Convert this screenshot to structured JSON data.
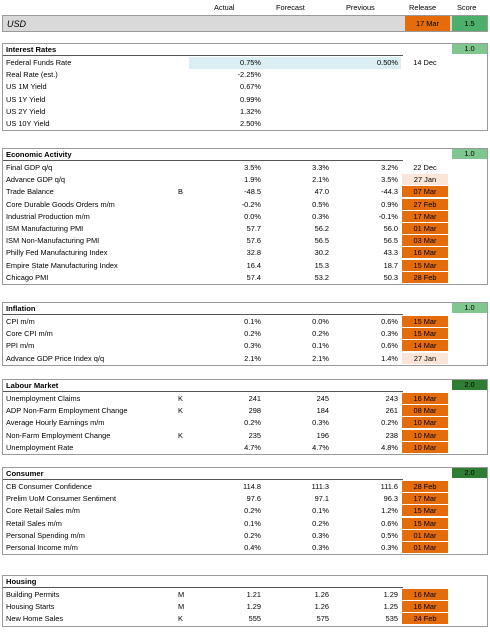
{
  "header": {
    "actual": "Actual",
    "forecast": "Forecast",
    "previous": "Previous",
    "release": "Release",
    "score": "Score"
  },
  "currency": {
    "name": "USD",
    "release": "17 Mar",
    "score": "1.5"
  },
  "colors": {
    "orange": "#e46c0a",
    "light_orange": "#fbe5d6",
    "green_light": "#7fc68f",
    "green_dark": "#2e7d32",
    "blue_light": "#dbeef4"
  },
  "sections": [
    {
      "title": "Interest Rates",
      "score": "1.0",
      "score_color": "#7fc68f",
      "rows": [
        {
          "label": "Federal Funds Rate",
          "unit": "",
          "actual": "0.75%",
          "forecast": "",
          "previous": "0.50%",
          "release": "14 Dec",
          "rel_style": "none"
        },
        {
          "label": "Real Rate (est.)",
          "unit": "",
          "actual": "-2.25%",
          "forecast": "",
          "previous": "",
          "release": "",
          "rel_style": "none"
        },
        {
          "label": "US 1M Yield",
          "unit": "",
          "actual": "0.67%",
          "forecast": "",
          "previous": "",
          "release": "",
          "rel_style": "none"
        },
        {
          "label": "US 1Y Yield",
          "unit": "",
          "actual": "0.99%",
          "forecast": "",
          "previous": "",
          "release": "",
          "rel_style": "none"
        },
        {
          "label": "US 2Y Yield",
          "unit": "",
          "actual": "1.32%",
          "forecast": "",
          "previous": "",
          "release": "",
          "rel_style": "none"
        },
        {
          "label": "US 10Y Yield",
          "unit": "",
          "actual": "2.50%",
          "forecast": "",
          "previous": "",
          "release": "",
          "rel_style": "none"
        }
      ]
    },
    {
      "title": "Economic Activity",
      "score": "1.0",
      "score_color": "#7fc68f",
      "rows": [
        {
          "label": "Final GDP q/q",
          "unit": "",
          "actual": "3.5%",
          "forecast": "3.3%",
          "previous": "3.2%",
          "release": "22 Dec",
          "rel_style": "none"
        },
        {
          "label": "Advance GDP q/q",
          "unit": "",
          "actual": "1.9%",
          "forecast": "2.1%",
          "previous": "3.5%",
          "release": "27 Jan",
          "rel_style": "light"
        },
        {
          "label": "Trade Balance",
          "unit": "B",
          "actual": "-48.5",
          "forecast": "47.0",
          "previous": "-44.3",
          "release": "07 Mar",
          "rel_style": "orange"
        },
        {
          "label": "Core Durable Goods Orders m/m",
          "unit": "",
          "actual": "-0.2%",
          "forecast": "0.5%",
          "previous": "0.9%",
          "release": "27 Feb",
          "rel_style": "orange"
        },
        {
          "label": "Industrial Production m/m",
          "unit": "",
          "actual": "0.0%",
          "forecast": "0.3%",
          "previous": "-0.1%",
          "release": "17 Mar",
          "rel_style": "orange"
        },
        {
          "label": "ISM Manufacturing PMI",
          "unit": "",
          "actual": "57.7",
          "forecast": "56.2",
          "previous": "56.0",
          "release": "01 Mar",
          "rel_style": "orange"
        },
        {
          "label": "ISM Non-Manufacturing PMI",
          "unit": "",
          "actual": "57.6",
          "forecast": "56.5",
          "previous": "56.5",
          "release": "03 Mar",
          "rel_style": "orange"
        },
        {
          "label": "Philly Fed Manufacturing Index",
          "unit": "",
          "actual": "32.8",
          "forecast": "30.2",
          "previous": "43.3",
          "release": "16 Mar",
          "rel_style": "orange"
        },
        {
          "label": "Empire State Manufacturing Index",
          "unit": "",
          "actual": "16.4",
          "forecast": "15.3",
          "previous": "18.7",
          "release": "15 Mar",
          "rel_style": "orange"
        },
        {
          "label": "Chicago PMI",
          "unit": "",
          "actual": "57.4",
          "forecast": "53.2",
          "previous": "50.3",
          "release": "28 Feb",
          "rel_style": "orange"
        }
      ]
    },
    {
      "title": "Inflation",
      "score": "1.0",
      "score_color": "#7fc68f",
      "rows": [
        {
          "label": "CPI m/m",
          "unit": "",
          "actual": "0.1%",
          "forecast": "0.0%",
          "previous": "0.6%",
          "release": "15 Mar",
          "rel_style": "orange"
        },
        {
          "label": "Core CPI m/m",
          "unit": "",
          "actual": "0.2%",
          "forecast": "0.2%",
          "previous": "0.3%",
          "release": "15 Mar",
          "rel_style": "orange"
        },
        {
          "label": "PPI m/m",
          "unit": "",
          "actual": "0.3%",
          "forecast": "0.1%",
          "previous": "0.6%",
          "release": "14 Mar",
          "rel_style": "orange"
        },
        {
          "label": "Advance GDP Price Index q/q",
          "unit": "",
          "actual": "2.1%",
          "forecast": "2.1%",
          "previous": "1.4%",
          "release": "27 Jan",
          "rel_style": "light"
        }
      ]
    },
    {
      "title": "Labour Market",
      "score": "2.0",
      "score_color": "#2e7d32",
      "rows": [
        {
          "label": "Unemployment Claims",
          "unit": "K",
          "actual": "241",
          "forecast": "245",
          "previous": "243",
          "release": "16 Mar",
          "rel_style": "orange"
        },
        {
          "label": "ADP Non-Farm Employment Change",
          "unit": "K",
          "actual": "298",
          "forecast": "184",
          "previous": "261",
          "release": "08 Mar",
          "rel_style": "orange"
        },
        {
          "label": "Average Hourly Earnings m/m",
          "unit": "",
          "actual": "0.2%",
          "forecast": "0.3%",
          "previous": "0.2%",
          "release": "10 Mar",
          "rel_style": "orange"
        },
        {
          "label": "Non-Farm Employment Change",
          "unit": "K",
          "actual": "235",
          "forecast": "196",
          "previous": "238",
          "release": "10 Mar",
          "rel_style": "orange"
        },
        {
          "label": "Unemployment Rate",
          "unit": "",
          "actual": "4.7%",
          "forecast": "4.7%",
          "previous": "4.8%",
          "release": "10 Mar",
          "rel_style": "orange"
        }
      ]
    },
    {
      "title": "Consumer",
      "score": "2.0",
      "score_color": "#2e7d32",
      "rows": [
        {
          "label": "CB Consumer Confidence",
          "unit": "",
          "actual": "114.8",
          "forecast": "111.3",
          "previous": "111.6",
          "release": "28 Feb",
          "rel_style": "orange"
        },
        {
          "label": "Prelim UoM Consumer Sentiment",
          "unit": "",
          "actual": "97.6",
          "forecast": "97.1",
          "previous": "96.3",
          "release": "17 Mar",
          "rel_style": "orange"
        },
        {
          "label": "Core Retail Sales m/m",
          "unit": "",
          "actual": "0.2%",
          "forecast": "0.1%",
          "previous": "1.2%",
          "release": "15 Mar",
          "rel_style": "orange"
        },
        {
          "label": "Retail Sales m/m",
          "unit": "",
          "actual": "0.1%",
          "forecast": "0.2%",
          "previous": "0.6%",
          "release": "15 Mar",
          "rel_style": "orange"
        },
        {
          "label": "Personal Spending m/m",
          "unit": "",
          "actual": "0.2%",
          "forecast": "0.3%",
          "previous": "0.5%",
          "release": "01 Mar",
          "rel_style": "orange"
        },
        {
          "label": "Personal Income m/m",
          "unit": "",
          "actual": "0.4%",
          "forecast": "0.3%",
          "previous": "0.3%",
          "release": "01 Mar",
          "rel_style": "orange"
        }
      ]
    },
    {
      "title": "Housing",
      "score": "",
      "score_color": "",
      "rows": [
        {
          "label": "Building Permits",
          "unit": "M",
          "actual": "1.21",
          "forecast": "1.26",
          "previous": "1.29",
          "release": "16 Mar",
          "rel_style": "orange"
        },
        {
          "label": "Housing Starts",
          "unit": "M",
          "actual": "1.29",
          "forecast": "1.26",
          "previous": "1.25",
          "release": "16 Mar",
          "rel_style": "orange"
        },
        {
          "label": "New Home Sales",
          "unit": "K",
          "actual": "555",
          "forecast": "575",
          "previous": "535",
          "release": "24 Feb",
          "rel_style": "orange"
        }
      ]
    }
  ]
}
